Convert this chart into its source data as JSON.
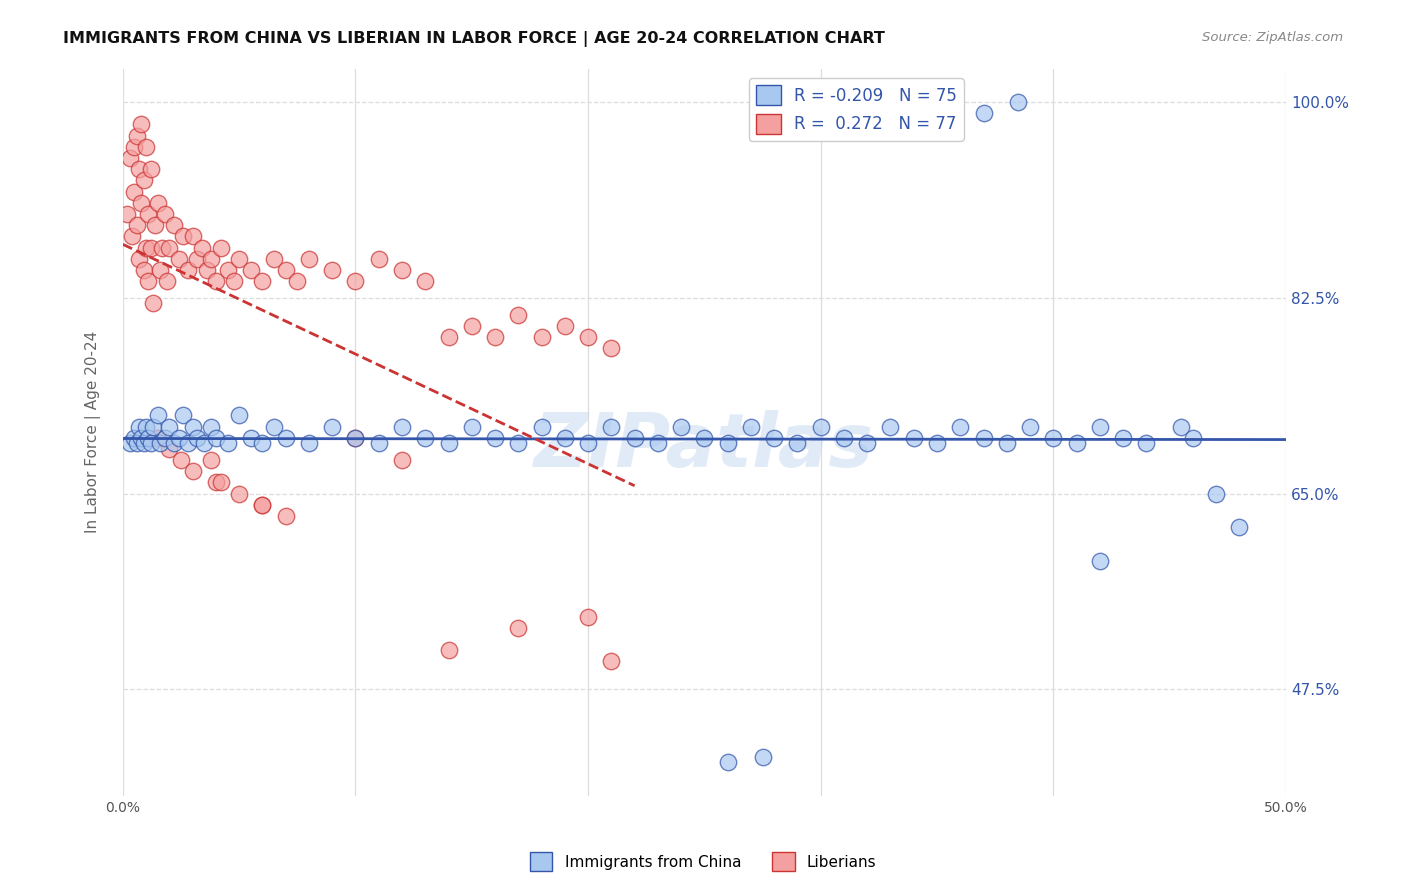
{
  "title": "IMMIGRANTS FROM CHINA VS LIBERIAN IN LABOR FORCE | AGE 20-24 CORRELATION CHART",
  "source": "Source: ZipAtlas.com",
  "ylabel": "In Labor Force | Age 20-24",
  "xlim": [
    0.0,
    0.5
  ],
  "ylim": [
    0.38,
    1.03
  ],
  "xticks": [
    0.0,
    0.1,
    0.2,
    0.3,
    0.4,
    0.5
  ],
  "xtick_labels": [
    "0.0%",
    "",
    "",
    "",
    "",
    "50.0%"
  ],
  "ytick_vals_right": [
    1.0,
    0.825,
    0.65,
    0.475
  ],
  "ytick_labels_right": [
    "100.0%",
    "82.5%",
    "65.0%",
    "47.5%"
  ],
  "china_R": -0.209,
  "china_N": 75,
  "liberian_R": 0.272,
  "liberian_N": 77,
  "china_color": "#a8c8f0",
  "liberian_color": "#f4a0a0",
  "trend_china_color": "#3355aa",
  "trend_liberian_color": "#cc3333",
  "background_color": "#ffffff",
  "grid_color": "#dddddd",
  "watermark": "ZIPatlas",
  "china_scatter_x": [
    0.003,
    0.005,
    0.006,
    0.007,
    0.008,
    0.009,
    0.01,
    0.011,
    0.012,
    0.013,
    0.015,
    0.016,
    0.018,
    0.02,
    0.022,
    0.024,
    0.026,
    0.028,
    0.03,
    0.032,
    0.035,
    0.038,
    0.04,
    0.045,
    0.05,
    0.055,
    0.06,
    0.065,
    0.07,
    0.08,
    0.09,
    0.1,
    0.11,
    0.12,
    0.13,
    0.14,
    0.15,
    0.16,
    0.17,
    0.18,
    0.19,
    0.2,
    0.21,
    0.22,
    0.23,
    0.24,
    0.25,
    0.26,
    0.27,
    0.28,
    0.29,
    0.3,
    0.31,
    0.32,
    0.33,
    0.34,
    0.35,
    0.36,
    0.37,
    0.38,
    0.39,
    0.4,
    0.41,
    0.42,
    0.43,
    0.44,
    0.455,
    0.46,
    0.47,
    0.48,
    0.37,
    0.385,
    0.26,
    0.275,
    0.42
  ],
  "china_scatter_y": [
    0.695,
    0.7,
    0.695,
    0.71,
    0.7,
    0.695,
    0.71,
    0.7,
    0.695,
    0.71,
    0.72,
    0.695,
    0.7,
    0.71,
    0.695,
    0.7,
    0.72,
    0.695,
    0.71,
    0.7,
    0.695,
    0.71,
    0.7,
    0.695,
    0.72,
    0.7,
    0.695,
    0.71,
    0.7,
    0.695,
    0.71,
    0.7,
    0.695,
    0.71,
    0.7,
    0.695,
    0.71,
    0.7,
    0.695,
    0.71,
    0.7,
    0.695,
    0.71,
    0.7,
    0.695,
    0.71,
    0.7,
    0.695,
    0.71,
    0.7,
    0.695,
    0.71,
    0.7,
    0.695,
    0.71,
    0.7,
    0.695,
    0.71,
    0.7,
    0.695,
    0.71,
    0.7,
    0.695,
    0.71,
    0.7,
    0.695,
    0.71,
    0.7,
    0.65,
    0.62,
    0.99,
    1.0,
    0.41,
    0.415,
    0.59
  ],
  "liberian_scatter_x": [
    0.002,
    0.003,
    0.004,
    0.005,
    0.005,
    0.006,
    0.006,
    0.007,
    0.007,
    0.008,
    0.008,
    0.009,
    0.009,
    0.01,
    0.01,
    0.011,
    0.011,
    0.012,
    0.012,
    0.013,
    0.014,
    0.015,
    0.016,
    0.017,
    0.018,
    0.019,
    0.02,
    0.022,
    0.024,
    0.026,
    0.028,
    0.03,
    0.032,
    0.034,
    0.036,
    0.038,
    0.04,
    0.042,
    0.045,
    0.048,
    0.05,
    0.055,
    0.06,
    0.065,
    0.07,
    0.075,
    0.08,
    0.09,
    0.1,
    0.11,
    0.12,
    0.13,
    0.14,
    0.15,
    0.16,
    0.17,
    0.18,
    0.19,
    0.2,
    0.21,
    0.015,
    0.02,
    0.025,
    0.03,
    0.04,
    0.05,
    0.06,
    0.07,
    0.1,
    0.12,
    0.038,
    0.042,
    0.06,
    0.17,
    0.14,
    0.2,
    0.21
  ],
  "liberian_scatter_y": [
    0.9,
    0.95,
    0.88,
    0.96,
    0.92,
    0.97,
    0.89,
    0.94,
    0.86,
    0.98,
    0.91,
    0.85,
    0.93,
    0.87,
    0.96,
    0.84,
    0.9,
    0.87,
    0.94,
    0.82,
    0.89,
    0.91,
    0.85,
    0.87,
    0.9,
    0.84,
    0.87,
    0.89,
    0.86,
    0.88,
    0.85,
    0.88,
    0.86,
    0.87,
    0.85,
    0.86,
    0.84,
    0.87,
    0.85,
    0.84,
    0.86,
    0.85,
    0.84,
    0.86,
    0.85,
    0.84,
    0.86,
    0.85,
    0.84,
    0.86,
    0.85,
    0.84,
    0.79,
    0.8,
    0.79,
    0.81,
    0.79,
    0.8,
    0.79,
    0.78,
    0.7,
    0.69,
    0.68,
    0.67,
    0.66,
    0.65,
    0.64,
    0.63,
    0.7,
    0.68,
    0.68,
    0.66,
    0.64,
    0.53,
    0.51,
    0.54,
    0.5
  ]
}
